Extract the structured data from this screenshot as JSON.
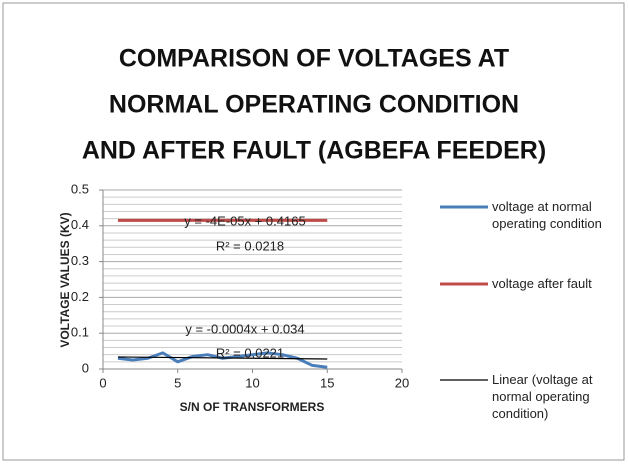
{
  "chart_data": {
    "type": "line",
    "title": [
      "COMPARISON OF VOLTAGES AT",
      "NORMAL OPERATING CONDITION",
      "AND AFTER FAULT (AGBEFA FEEDER)"
    ],
    "x_label": "S/N OF TRANSFORMERS",
    "y_label": "VOLTAGE VALUES (KV)",
    "x": [
      1,
      2,
      3,
      4,
      5,
      6,
      7,
      8,
      9,
      10,
      11,
      12,
      13,
      14,
      15
    ],
    "series": [
      {
        "name": "voltage at normal operating condition",
        "color": "#4a7ebb",
        "values": [
          0.03,
          0.025,
          0.03,
          0.045,
          0.02,
          0.035,
          0.04,
          0.03,
          0.035,
          0.04,
          0.045,
          0.04,
          0.03,
          0.01,
          0.005
        ]
      },
      {
        "name": "voltage after fault",
        "color": "#be4b48",
        "values": [
          0.415,
          0.415,
          0.415,
          0.415,
          0.415,
          0.415,
          0.415,
          0.415,
          0.415,
          0.415,
          0.415,
          0.415,
          0.415,
          0.415,
          0.415
        ]
      },
      {
        "name": "Linear (voltage at normal operating condition)",
        "color": "#000000",
        "x": [
          1,
          15
        ],
        "values": [
          0.0336,
          0.028
        ]
      }
    ],
    "annotations": [
      "y = -4E-05x + 0.4165",
      "R² = 0.0218",
      "y = -0.0004x + 0.034",
      "R² = 0.0221"
    ],
    "xlim": [
      0,
      20
    ],
    "xticks": [
      0,
      5,
      10,
      15,
      20
    ],
    "ylim": [
      0,
      0.5
    ],
    "yticks": [
      0,
      0.1,
      0.2,
      0.3,
      0.4,
      0.5
    ],
    "minor_yticks": [
      0.02,
      0.04,
      0.06,
      0.08,
      0.12,
      0.14,
      0.16,
      0.18,
      0.22,
      0.24,
      0.26,
      0.28,
      0.32,
      0.34,
      0.36,
      0.38,
      0.42,
      0.44,
      0.46,
      0.48
    ],
    "grid": true,
    "legend": "right"
  }
}
